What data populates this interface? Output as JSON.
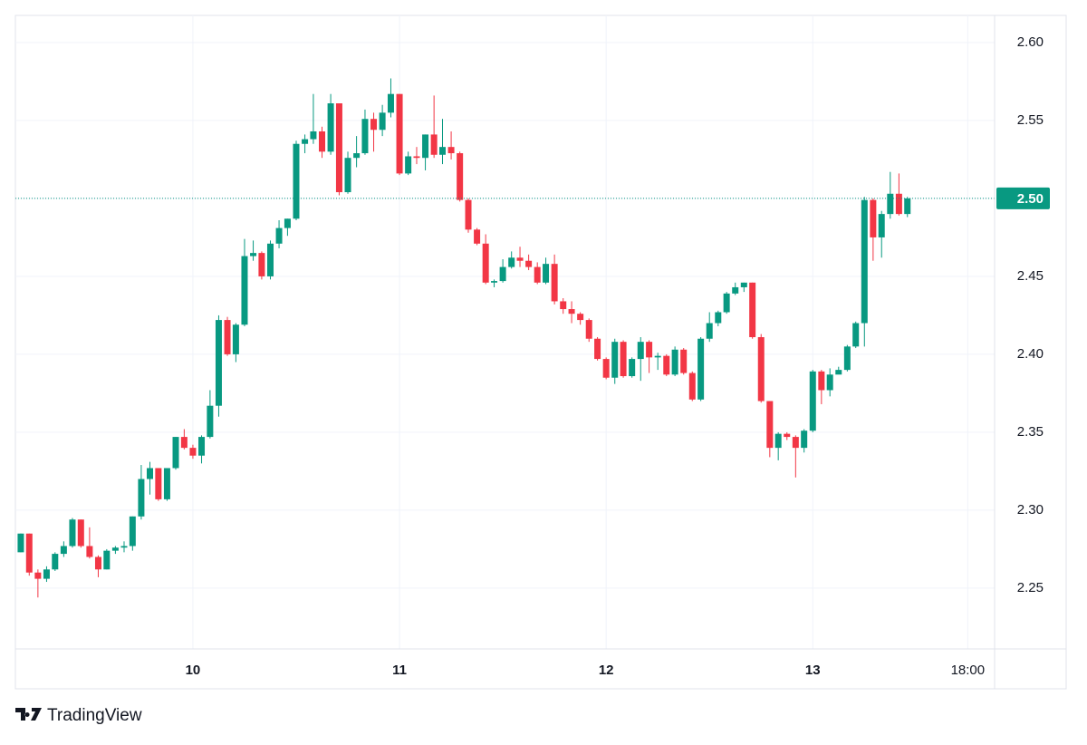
{
  "chart_data": {
    "type": "candlestick",
    "source": "TradingView",
    "up_color": "#089981",
    "down_color": "#f23645",
    "grid": true,
    "xlim": [
      9.141,
      13.88
    ],
    "xticks": [
      10,
      11,
      12,
      13,
      {
        "value": 13.75,
        "label": "18:00"
      }
    ],
    "ylim": [
      2.211,
      2.6174
    ],
    "yticks": [
      2.25,
      {
        "value": 2.3,
        "label": "2.30"
      },
      2.35,
      {
        "value": 2.4,
        "label": "2.40"
      },
      2.45,
      {
        "value": 2.5,
        "label": "2.50"
      },
      2.55,
      {
        "value": 2.6,
        "label": "2.60"
      }
    ],
    "last_price": {
      "value": 2.5,
      "label": "2.50"
    },
    "x": [
      9.167,
      9.208,
      9.25,
      9.292,
      9.333,
      9.375,
      9.417,
      9.458,
      9.5,
      9.542,
      9.583,
      9.625,
      9.667,
      9.708,
      9.75,
      9.792,
      9.833,
      9.875,
      9.917,
      9.958,
      10,
      10.042,
      10.083,
      10.125,
      10.167,
      10.208,
      10.25,
      10.292,
      10.333,
      10.375,
      10.417,
      10.458,
      10.5,
      10.542,
      10.583,
      10.625,
      10.667,
      10.708,
      10.75,
      10.792,
      10.833,
      10.875,
      10.917,
      10.958,
      11,
      11.042,
      11.083,
      11.125,
      11.167,
      11.208,
      11.25,
      11.292,
      11.333,
      11.375,
      11.417,
      11.458,
      11.5,
      11.542,
      11.583,
      11.625,
      11.667,
      11.708,
      11.75,
      11.792,
      11.833,
      11.875,
      11.917,
      11.958,
      12,
      12.042,
      12.083,
      12.125,
      12.167,
      12.208,
      12.25,
      12.292,
      12.333,
      12.375,
      12.417,
      12.458,
      12.5,
      12.542,
      12.583,
      12.625,
      12.667,
      12.708,
      12.75,
      12.792,
      12.833,
      12.875,
      12.917,
      12.958,
      13,
      13.042,
      13.083,
      13.125,
      13.167,
      13.208,
      13.25,
      13.292,
      13.333,
      13.375,
      13.417,
      13.458
    ],
    "open": [
      2.273,
      2.285,
      2.26,
      2.256,
      2.262,
      2.272,
      2.277,
      2.294,
      2.277,
      2.27,
      2.262,
      2.274,
      2.276,
      2.277,
      2.296,
      2.32,
      2.327,
      2.307,
      2.327,
      2.347,
      2.34,
      2.335,
      2.347,
      2.367,
      2.422,
      2.4,
      2.419,
      2.463,
      2.465,
      2.45,
      2.471,
      2.481,
      2.487,
      2.535,
      2.538,
      2.543,
      2.53,
      2.561,
      2.504,
      2.526,
      2.529,
      2.551,
      2.544,
      2.555,
      2.567,
      2.516,
      2.527,
      2.526,
      2.541,
      2.528,
      2.533,
      2.529,
      2.499,
      2.48,
      2.471,
      2.446,
      2.447,
      2.456,
      2.462,
      2.46,
      2.456,
      2.446,
      2.458,
      2.434,
      2.429,
      2.426,
      2.422,
      2.41,
      2.397,
      2.385,
      2.408,
      2.386,
      2.397,
      2.408,
      2.398,
      2.399,
      2.387,
      2.403,
      2.388,
      2.371,
      2.41,
      2.42,
      2.427,
      2.439,
      2.443,
      2.446,
      2.411,
      2.37,
      2.34,
      2.349,
      2.347,
      2.34,
      2.351,
      2.389,
      2.377,
      2.387,
      2.39,
      2.405,
      2.42,
      2.499,
      2.475,
      2.49,
      2.503,
      2.49
    ],
    "high": [
      2.285,
      2.285,
      2.262,
      2.264,
      2.273,
      2.28,
      2.295,
      2.294,
      2.289,
      2.271,
      2.275,
      2.277,
      2.28,
      2.296,
      2.329,
      2.331,
      2.327,
      2.327,
      2.347,
      2.352,
      2.342,
      2.348,
      2.377,
      2.425,
      2.424,
      2.42,
      2.474,
      2.473,
      2.466,
      2.473,
      2.486,
      2.487,
      2.537,
      2.541,
      2.567,
      2.546,
      2.567,
      2.561,
      2.53,
      2.54,
      2.557,
      2.555,
      2.56,
      2.577,
      2.567,
      2.53,
      2.533,
      2.541,
      2.566,
      2.551,
      2.543,
      2.53,
      2.5,
      2.481,
      2.477,
      2.448,
      2.461,
      2.466,
      2.469,
      2.464,
      2.459,
      2.462,
      2.464,
      2.436,
      2.434,
      2.427,
      2.423,
      2.411,
      2.398,
      2.41,
      2.409,
      2.398,
      2.411,
      2.409,
      2.401,
      2.4,
      2.405,
      2.404,
      2.389,
      2.411,
      2.427,
      2.428,
      2.44,
      2.446,
      2.446,
      2.446,
      2.413,
      2.37,
      2.35,
      2.35,
      2.348,
      2.352,
      2.39,
      2.39,
      2.391,
      2.392,
      2.406,
      2.421,
      2.501,
      2.5,
      2.492,
      2.517,
      2.516,
      2.501
    ],
    "low": [
      2.273,
      2.258,
      2.244,
      2.254,
      2.261,
      2.27,
      2.276,
      2.276,
      2.269,
      2.257,
      2.262,
      2.272,
      2.273,
      2.274,
      2.294,
      2.31,
      2.306,
      2.306,
      2.326,
      2.339,
      2.333,
      2.33,
      2.346,
      2.36,
      2.399,
      2.395,
      2.418,
      2.46,
      2.448,
      2.448,
      2.468,
      2.476,
      2.486,
      2.529,
      2.535,
      2.526,
      2.528,
      2.502,
      2.503,
      2.52,
      2.528,
      2.53,
      2.54,
      2.552,
      2.515,
      2.515,
      2.522,
      2.518,
      2.526,
      2.522,
      2.525,
      2.498,
      2.478,
      2.47,
      2.445,
      2.443,
      2.446,
      2.455,
      2.456,
      2.454,
      2.445,
      2.445,
      2.432,
      2.426,
      2.42,
      2.419,
      2.408,
      2.396,
      2.384,
      2.381,
      2.385,
      2.385,
      2.383,
      2.388,
      2.39,
      2.386,
      2.386,
      2.387,
      2.37,
      2.37,
      2.408,
      2.418,
      2.426,
      2.438,
      2.44,
      2.41,
      2.369,
      2.334,
      2.332,
      2.345,
      2.321,
      2.337,
      2.35,
      2.368,
      2.373,
      2.388,
      2.389,
      2.404,
      2.405,
      2.46,
      2.462,
      2.487,
      2.489,
      2.488
    ],
    "close": [
      2.285,
      2.26,
      2.256,
      2.262,
      2.272,
      2.277,
      2.294,
      2.277,
      2.27,
      2.262,
      2.274,
      2.276,
      2.277,
      2.296,
      2.32,
      2.327,
      2.307,
      2.327,
      2.347,
      2.34,
      2.335,
      2.347,
      2.367,
      2.422,
      2.4,
      2.419,
      2.463,
      2.465,
      2.45,
      2.471,
      2.481,
      2.487,
      2.535,
      2.538,
      2.543,
      2.53,
      2.561,
      2.504,
      2.526,
      2.529,
      2.551,
      2.544,
      2.555,
      2.567,
      2.516,
      2.527,
      2.526,
      2.541,
      2.528,
      2.533,
      2.529,
      2.499,
      2.48,
      2.471,
      2.446,
      2.447,
      2.456,
      2.462,
      2.46,
      2.456,
      2.446,
      2.458,
      2.434,
      2.429,
      2.426,
      2.422,
      2.41,
      2.397,
      2.385,
      2.408,
      2.386,
      2.397,
      2.408,
      2.398,
      2.399,
      2.387,
      2.403,
      2.388,
      2.371,
      2.41,
      2.42,
      2.427,
      2.439,
      2.443,
      2.446,
      2.411,
      2.37,
      2.34,
      2.349,
      2.347,
      2.34,
      2.351,
      2.389,
      2.377,
      2.387,
      2.39,
      2.405,
      2.42,
      2.499,
      2.475,
      2.49,
      2.503,
      2.49,
      2.5
    ]
  }
}
